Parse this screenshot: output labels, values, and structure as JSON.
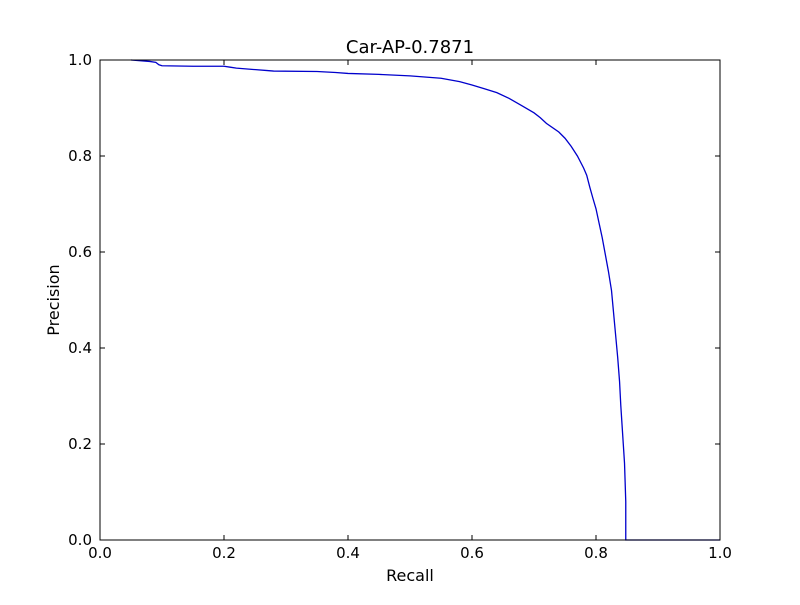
{
  "chart_data": {
    "type": "line",
    "title": "Car-AP-0.7871",
    "xlabel": "Recall",
    "ylabel": "Precision",
    "xlim": [
      0.0,
      1.0
    ],
    "ylim": [
      0.0,
      1.0
    ],
    "xticks": [
      "0.0",
      "0.2",
      "0.4",
      "0.6",
      "0.8",
      "1.0"
    ],
    "yticks": [
      "0.0",
      "0.2",
      "0.4",
      "0.6",
      "0.8",
      "1.0"
    ],
    "grid": false,
    "line_color": "#0000cc",
    "series": [
      {
        "x": [
          0.05,
          0.08,
          0.09,
          0.095,
          0.1,
          0.15,
          0.2,
          0.21,
          0.22,
          0.24,
          0.27,
          0.28,
          0.35,
          0.38,
          0.4,
          0.45,
          0.5,
          0.55,
          0.58,
          0.6,
          0.62,
          0.64,
          0.66,
          0.68,
          0.7,
          0.71,
          0.72,
          0.74,
          0.75,
          0.76,
          0.77,
          0.78,
          0.785,
          0.79,
          0.795,
          0.8,
          0.805,
          0.81,
          0.815,
          0.82,
          0.825,
          0.83,
          0.835,
          0.838,
          0.84,
          0.842,
          0.844,
          0.846,
          0.847,
          0.848,
          0.848,
          0.85,
          0.9,
          1.0
        ],
        "y": [
          1.0,
          0.997,
          0.995,
          0.99,
          0.988,
          0.987,
          0.987,
          0.985,
          0.983,
          0.981,
          0.978,
          0.977,
          0.976,
          0.974,
          0.972,
          0.97,
          0.967,
          0.962,
          0.955,
          0.948,
          0.94,
          0.932,
          0.92,
          0.905,
          0.89,
          0.88,
          0.868,
          0.85,
          0.837,
          0.82,
          0.8,
          0.775,
          0.76,
          0.735,
          0.712,
          0.69,
          0.66,
          0.63,
          0.595,
          0.56,
          0.52,
          0.45,
          0.38,
          0.33,
          0.28,
          0.24,
          0.2,
          0.16,
          0.12,
          0.08,
          0.0,
          0.0,
          0.0,
          0.0
        ]
      }
    ]
  }
}
